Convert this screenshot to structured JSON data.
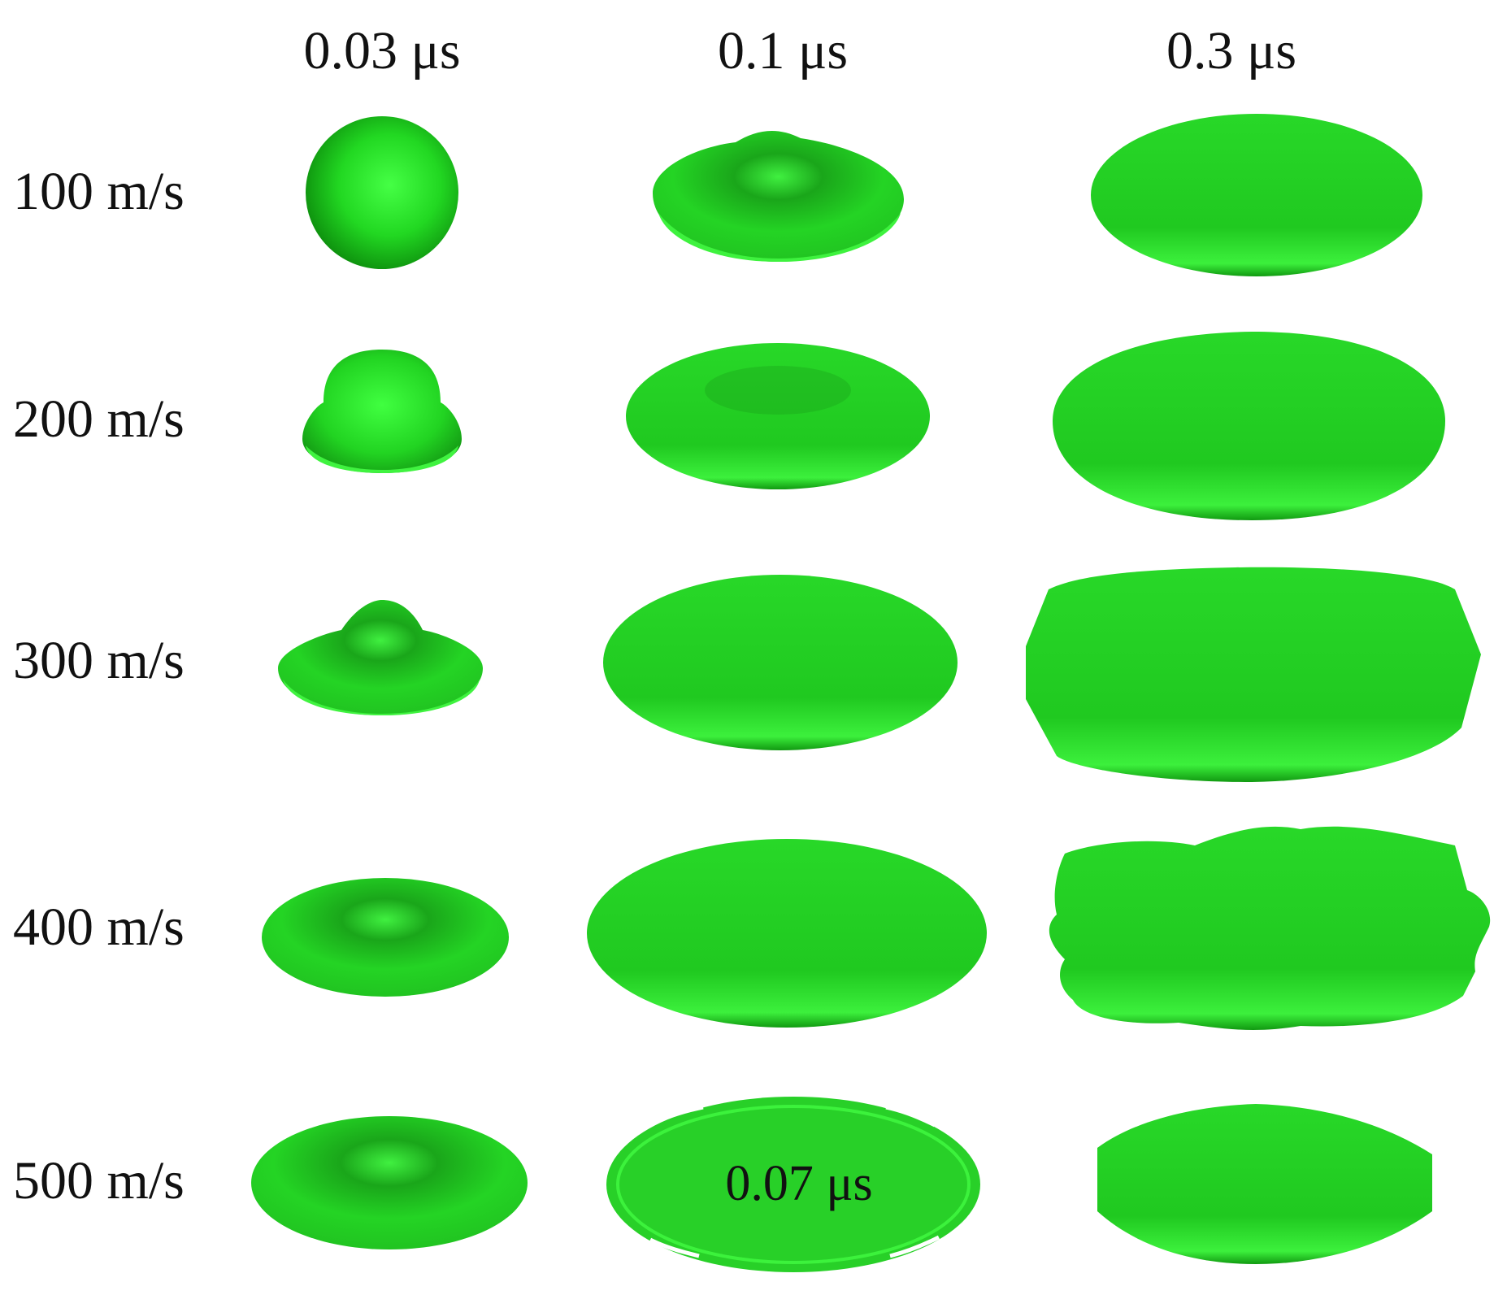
{
  "columns": [
    {
      "label": "0.03 μs"
    },
    {
      "label": "0.1 μs"
    },
    {
      "label": "0.3 μs"
    }
  ],
  "rows": [
    {
      "label": "100 m/s"
    },
    {
      "label": "200 m/s"
    },
    {
      "label": "300 m/s"
    },
    {
      "label": "400 m/s"
    },
    {
      "label": "500 m/s"
    }
  ],
  "inset_time_label": "0.07 μs",
  "colors": {
    "droplet_light": "#3cff3c",
    "droplet_mid": "#1ed21e",
    "droplet_dark": "#0f8f0f",
    "background": "#ffffff",
    "text": "#111111"
  }
}
